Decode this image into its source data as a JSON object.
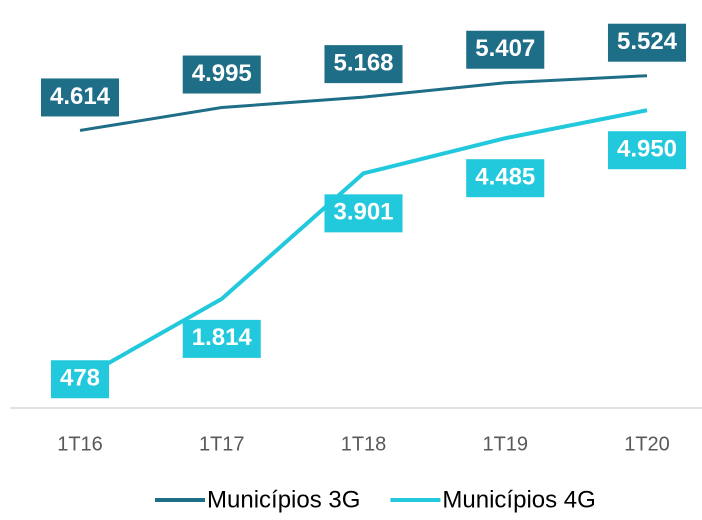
{
  "chart_data": {
    "type": "line",
    "categories": [
      "1T16",
      "1T17",
      "1T18",
      "1T19",
      "1T20"
    ],
    "series": [
      {
        "name": "Municípios 3G",
        "color": "#1f6e87",
        "values": [
          4614,
          4995,
          5168,
          5407,
          5524
        ],
        "value_labels": [
          "4.614",
          "4.995",
          "5.168",
          "5.407",
          "5.524"
        ]
      },
      {
        "name": "Municípios 4G",
        "color": "#22c8dc",
        "values": [
          478,
          1814,
          3901,
          4485,
          4950
        ],
        "value_labels": [
          "478",
          "1.814",
          "3.901",
          "4.485",
          "4.950"
        ]
      }
    ],
    "ylim": [
      0,
      6500
    ],
    "legend": "bottom"
  }
}
